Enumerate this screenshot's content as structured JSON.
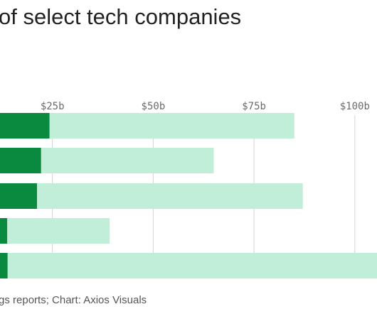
{
  "title": "of select tech companies",
  "source": "gs reports; Chart: Axios Visuals",
  "colors": {
    "dark": "#0a8a3f",
    "light": "#c0eed8",
    "grid": "#d4d4d4"
  },
  "chart_data": {
    "type": "bar",
    "orientation": "horizontal",
    "stacked": true,
    "title": "of select tech companies",
    "xaxis": {
      "ticks": [
        25,
        50,
        75,
        100
      ],
      "tick_labels": [
        "$25b",
        "$50b",
        "$75b",
        "$100b"
      ],
      "range": [
        12,
        105.5
      ],
      "position": "top"
    },
    "grid": true,
    "categories": [
      "",
      "",
      "",
      "",
      ""
    ],
    "series": [
      {
        "color": "#0a8a3f",
        "values": [
          24.3,
          22.2,
          21.2,
          13.8,
          13.9
        ]
      },
      {
        "color": "#c0eed8",
        "values": [
          60.7,
          42.8,
          65.9,
          25.4,
          96.1
        ]
      }
    ]
  }
}
